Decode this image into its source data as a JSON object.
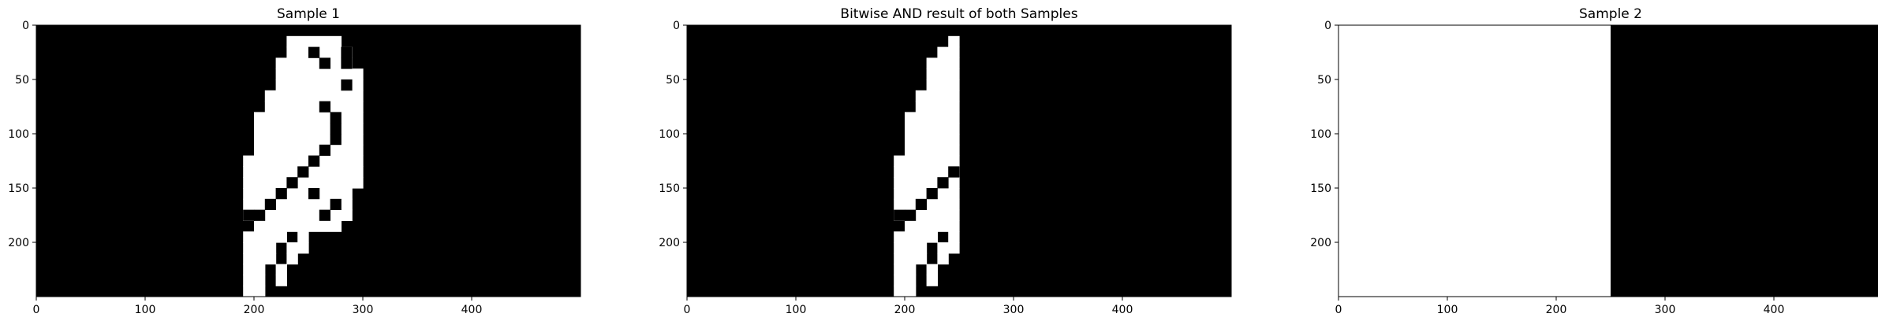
{
  "colors": {
    "background": "#000000",
    "foreground": "#ffffff",
    "axis": "#000000"
  },
  "chart_data": [
    {
      "type": "heatmap",
      "title": "Sample 1",
      "image_size": [
        500,
        250
      ],
      "xlim": [
        0,
        500
      ],
      "ylim": [
        250,
        0
      ],
      "xticks": [
        0,
        100,
        200,
        300,
        400
      ],
      "yticks": [
        0,
        50,
        100,
        150,
        200
      ],
      "grid": false,
      "cell": 10,
      "cmap": "gray",
      "white_rows": [
        [
          [
            230,
            280
          ]
        ],
        [
          [
            230,
            290
          ]
        ],
        [
          [
            220,
            290
          ]
        ],
        [
          [
            220,
            300
          ]
        ],
        [
          [
            220,
            300
          ]
        ],
        [
          [
            210,
            300
          ]
        ],
        [
          [
            210,
            300
          ]
        ],
        [
          [
            200,
            300
          ]
        ],
        [
          [
            200,
            300
          ]
        ],
        [
          [
            200,
            300
          ]
        ],
        [
          [
            200,
            300
          ]
        ],
        [
          [
            190,
            300
          ]
        ],
        [
          [
            190,
            300
          ]
        ],
        [
          [
            190,
            300
          ]
        ],
        [
          [
            190,
            290
          ]
        ],
        [
          [
            190,
            290
          ]
        ],
        [
          [
            190,
            290
          ]
        ],
        [
          [
            200,
            280
          ]
        ],
        [
          [
            190,
            230
          ],
          [
            240,
            250
          ]
        ],
        [
          [
            190,
            220
          ],
          [
            230,
            250
          ]
        ],
        [
          [
            190,
            220
          ],
          [
            230,
            240
          ]
        ],
        [
          [
            190,
            210
          ],
          [
            220,
            230
          ]
        ],
        [
          [
            190,
            210
          ],
          [
            220,
            230
          ]
        ],
        [
          [
            190,
            210
          ]
        ]
      ],
      "holes": [
        [
          250,
          20
        ],
        [
          280,
          20
        ],
        [
          280,
          30
        ],
        [
          260,
          30
        ],
        [
          280,
          50
        ],
        [
          260,
          70
        ],
        [
          270,
          80
        ],
        [
          270,
          90
        ],
        [
          270,
          100
        ],
        [
          260,
          110
        ],
        [
          250,
          120
        ],
        [
          240,
          130
        ],
        [
          230,
          140
        ],
        [
          220,
          150
        ],
        [
          210,
          160
        ],
        [
          200,
          170
        ],
        [
          190,
          170
        ],
        [
          250,
          150
        ],
        [
          270,
          160
        ],
        [
          260,
          170
        ]
      ]
    },
    {
      "type": "heatmap",
      "title": "Bitwise AND result of both Samples",
      "image_size": [
        500,
        250
      ],
      "xlim": [
        0,
        500
      ],
      "ylim": [
        250,
        0
      ],
      "xticks": [
        0,
        100,
        200,
        300,
        400
      ],
      "yticks": [
        0,
        50,
        100,
        150,
        200
      ],
      "grid": false,
      "cell": 10,
      "cmap": "gray",
      "white_rows": [
        [
          [
            240,
            250
          ]
        ],
        [
          [
            230,
            250
          ]
        ],
        [
          [
            220,
            250
          ]
        ],
        [
          [
            220,
            250
          ]
        ],
        [
          [
            220,
            250
          ]
        ],
        [
          [
            210,
            250
          ]
        ],
        [
          [
            210,
            250
          ]
        ],
        [
          [
            200,
            250
          ]
        ],
        [
          [
            200,
            250
          ]
        ],
        [
          [
            200,
            250
          ]
        ],
        [
          [
            200,
            250
          ]
        ],
        [
          [
            190,
            250
          ]
        ],
        [
          [
            190,
            250
          ]
        ],
        [
          [
            190,
            250
          ]
        ],
        [
          [
            190,
            250
          ]
        ],
        [
          [
            190,
            250
          ]
        ],
        [
          [
            190,
            250
          ]
        ],
        [
          [
            200,
            250
          ]
        ],
        [
          [
            190,
            230
          ],
          [
            240,
            250
          ]
        ],
        [
          [
            190,
            220
          ],
          [
            230,
            250
          ]
        ],
        [
          [
            190,
            220
          ],
          [
            230,
            240
          ]
        ],
        [
          [
            190,
            210
          ],
          [
            220,
            230
          ]
        ],
        [
          [
            190,
            210
          ],
          [
            220,
            230
          ]
        ],
        [
          [
            190,
            210
          ]
        ]
      ],
      "holes": [
        [
          240,
          130
        ],
        [
          230,
          140
        ],
        [
          220,
          150
        ],
        [
          210,
          160
        ],
        [
          200,
          170
        ],
        [
          190,
          170
        ]
      ]
    },
    {
      "type": "heatmap",
      "title": "Sample 2",
      "image_size": [
        500,
        250
      ],
      "xlim": [
        0,
        500
      ],
      "ylim": [
        250,
        0
      ],
      "xticks": [
        0,
        100,
        200,
        300,
        400
      ],
      "yticks": [
        0,
        50,
        100,
        150,
        200
      ],
      "grid": false,
      "cell": 10,
      "cmap": "gray",
      "white_region": {
        "x": [
          0,
          250
        ],
        "y": [
          0,
          250
        ]
      }
    }
  ]
}
